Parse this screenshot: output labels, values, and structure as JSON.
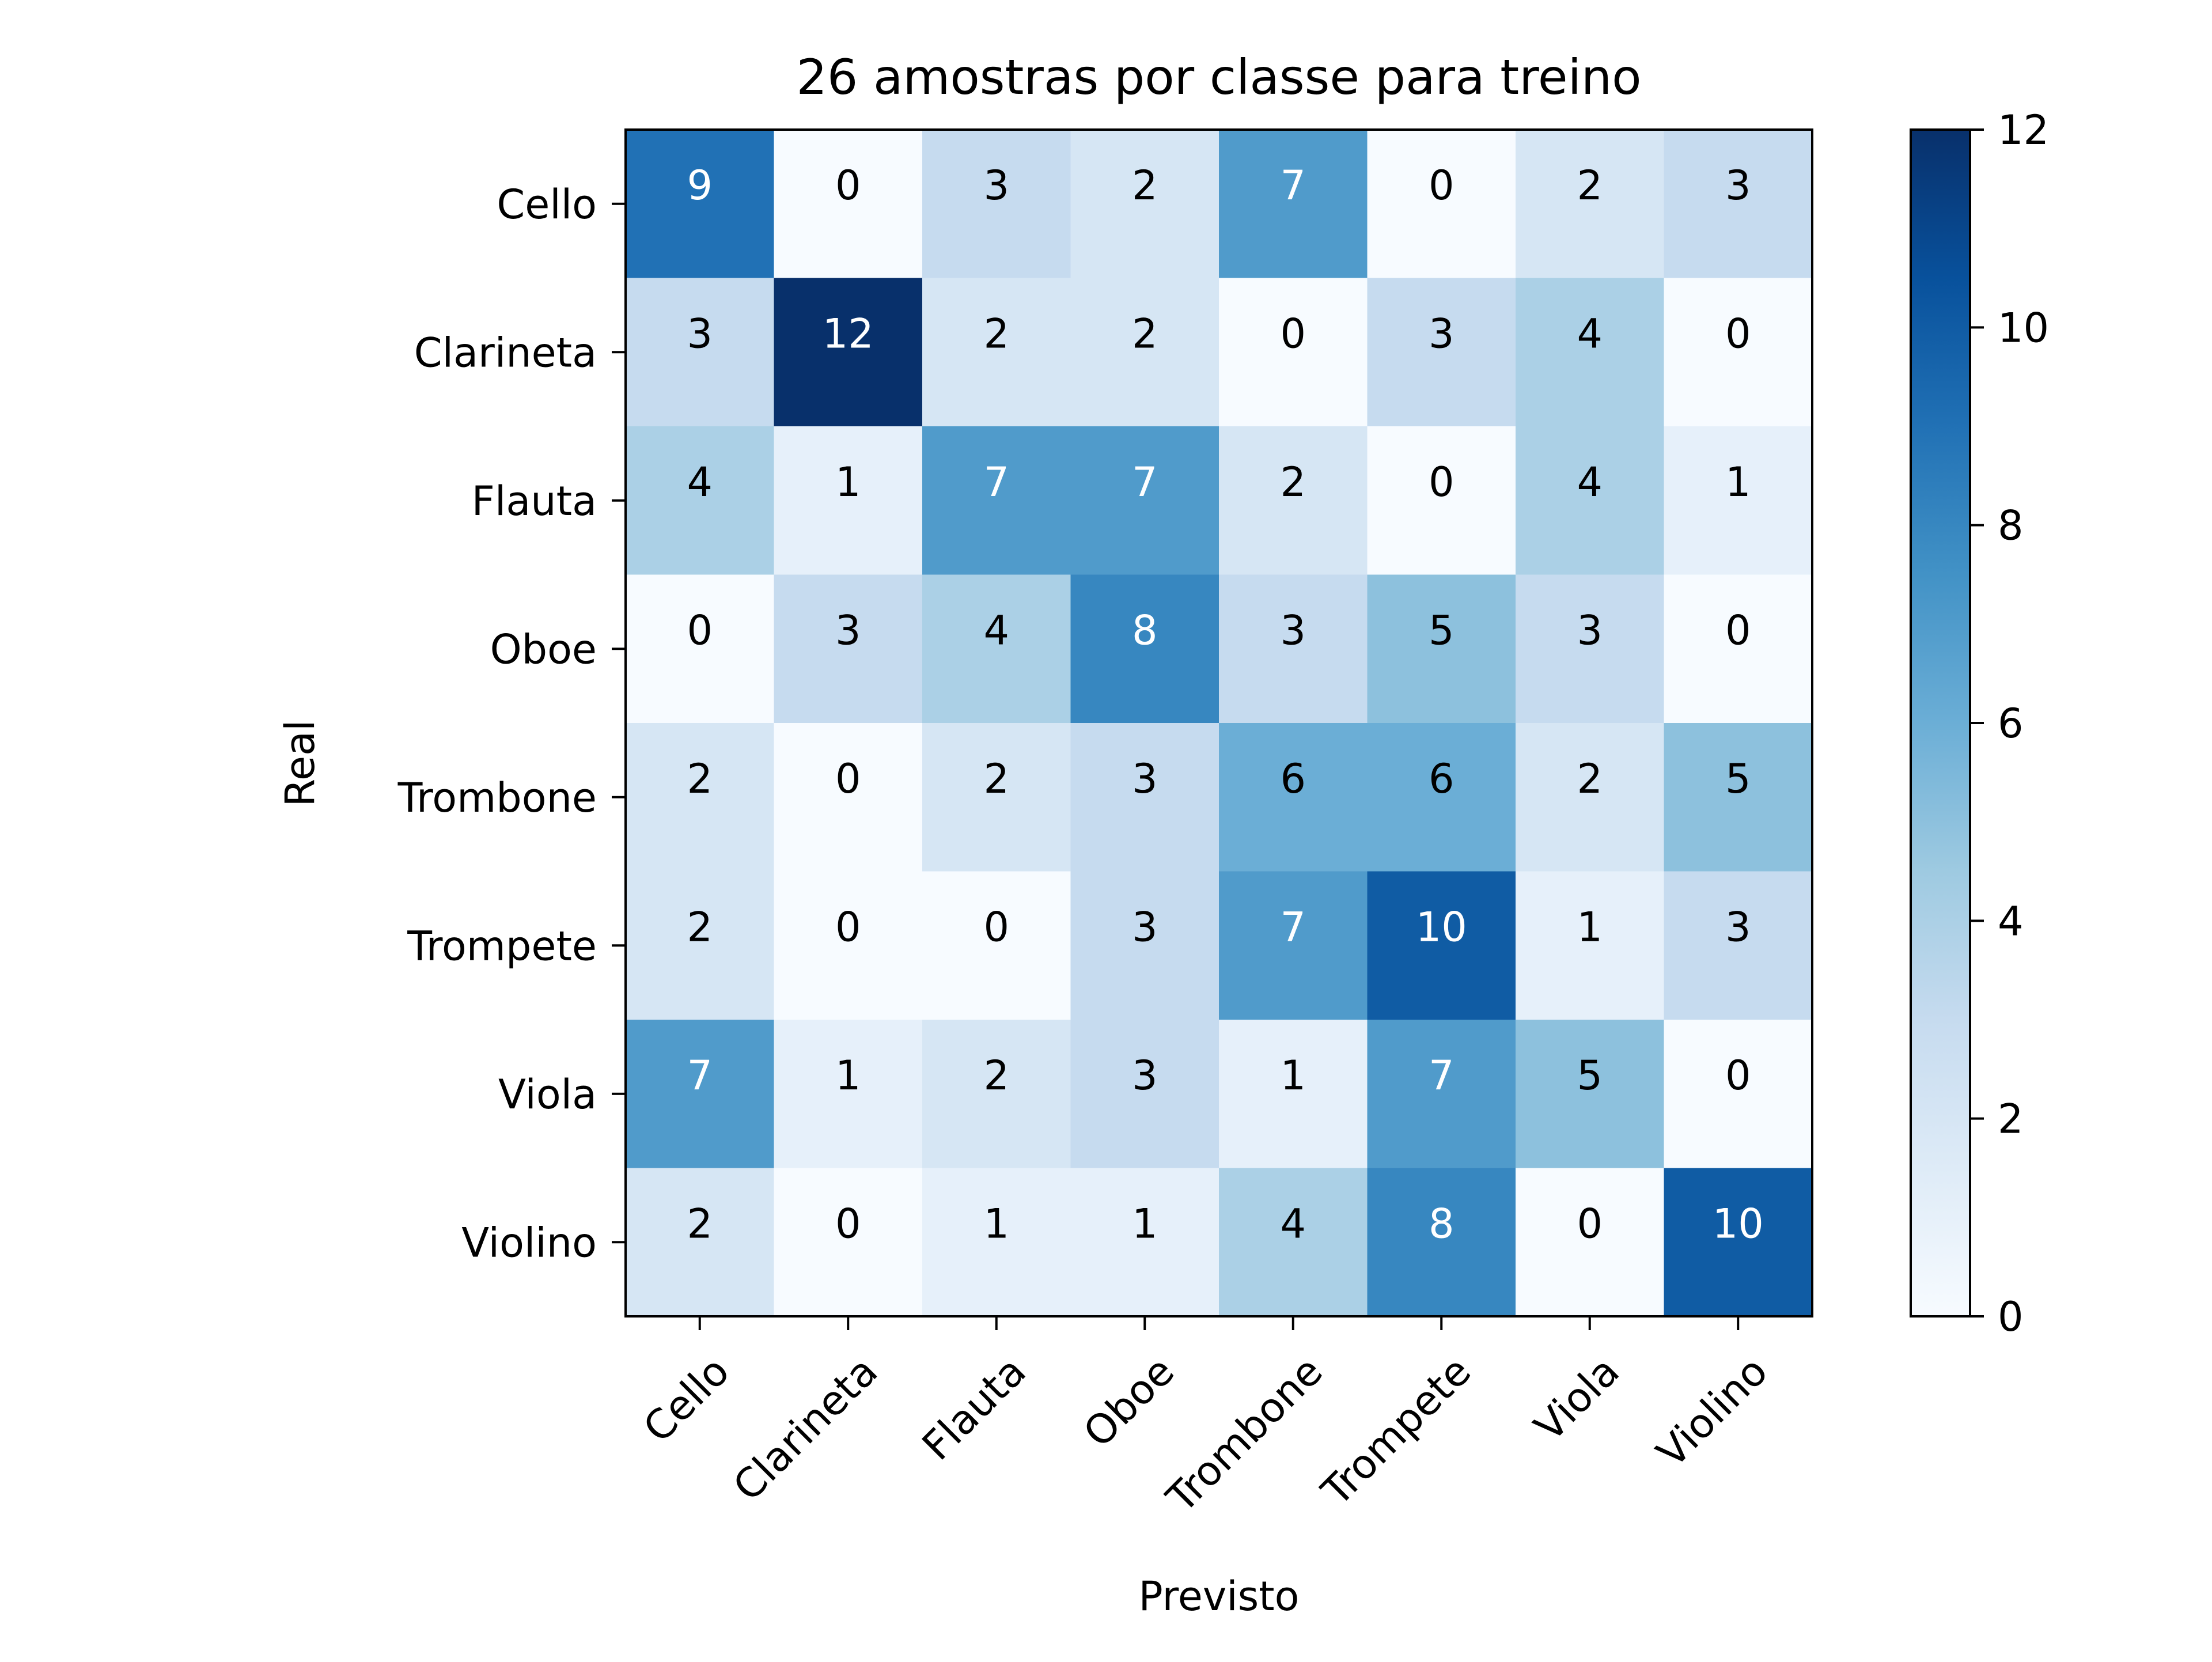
{
  "chart_data": {
    "type": "heatmap",
    "title": "26 amostras por classe para treino",
    "xlabel": "Previsto",
    "ylabel": "Real",
    "x_categories": [
      "Cello",
      "Clarineta",
      "Flauta",
      "Oboe",
      "Trombone",
      "Trompete",
      "Viola",
      "Violino"
    ],
    "y_categories": [
      "Cello",
      "Clarineta",
      "Flauta",
      "Oboe",
      "Trombone",
      "Trompete",
      "Viola",
      "Violino"
    ],
    "values": [
      [
        9,
        0,
        3,
        2,
        7,
        0,
        2,
        3
      ],
      [
        3,
        12,
        2,
        2,
        0,
        3,
        4,
        0
      ],
      [
        4,
        1,
        7,
        7,
        2,
        0,
        4,
        1
      ],
      [
        0,
        3,
        4,
        8,
        3,
        5,
        3,
        0
      ],
      [
        2,
        0,
        2,
        3,
        6,
        6,
        2,
        5
      ],
      [
        2,
        0,
        0,
        3,
        7,
        10,
        1,
        3
      ],
      [
        7,
        1,
        2,
        3,
        1,
        7,
        5,
        0
      ],
      [
        2,
        0,
        1,
        1,
        4,
        8,
        0,
        10
      ]
    ],
    "colorbar": {
      "min": 0,
      "max": 12,
      "ticks": [
        0,
        2,
        4,
        6,
        8,
        10,
        12
      ],
      "colormap": "Blues",
      "color_low": "#f7fbff",
      "color_high": "#08306b"
    },
    "x_tick_rotation": 45
  }
}
